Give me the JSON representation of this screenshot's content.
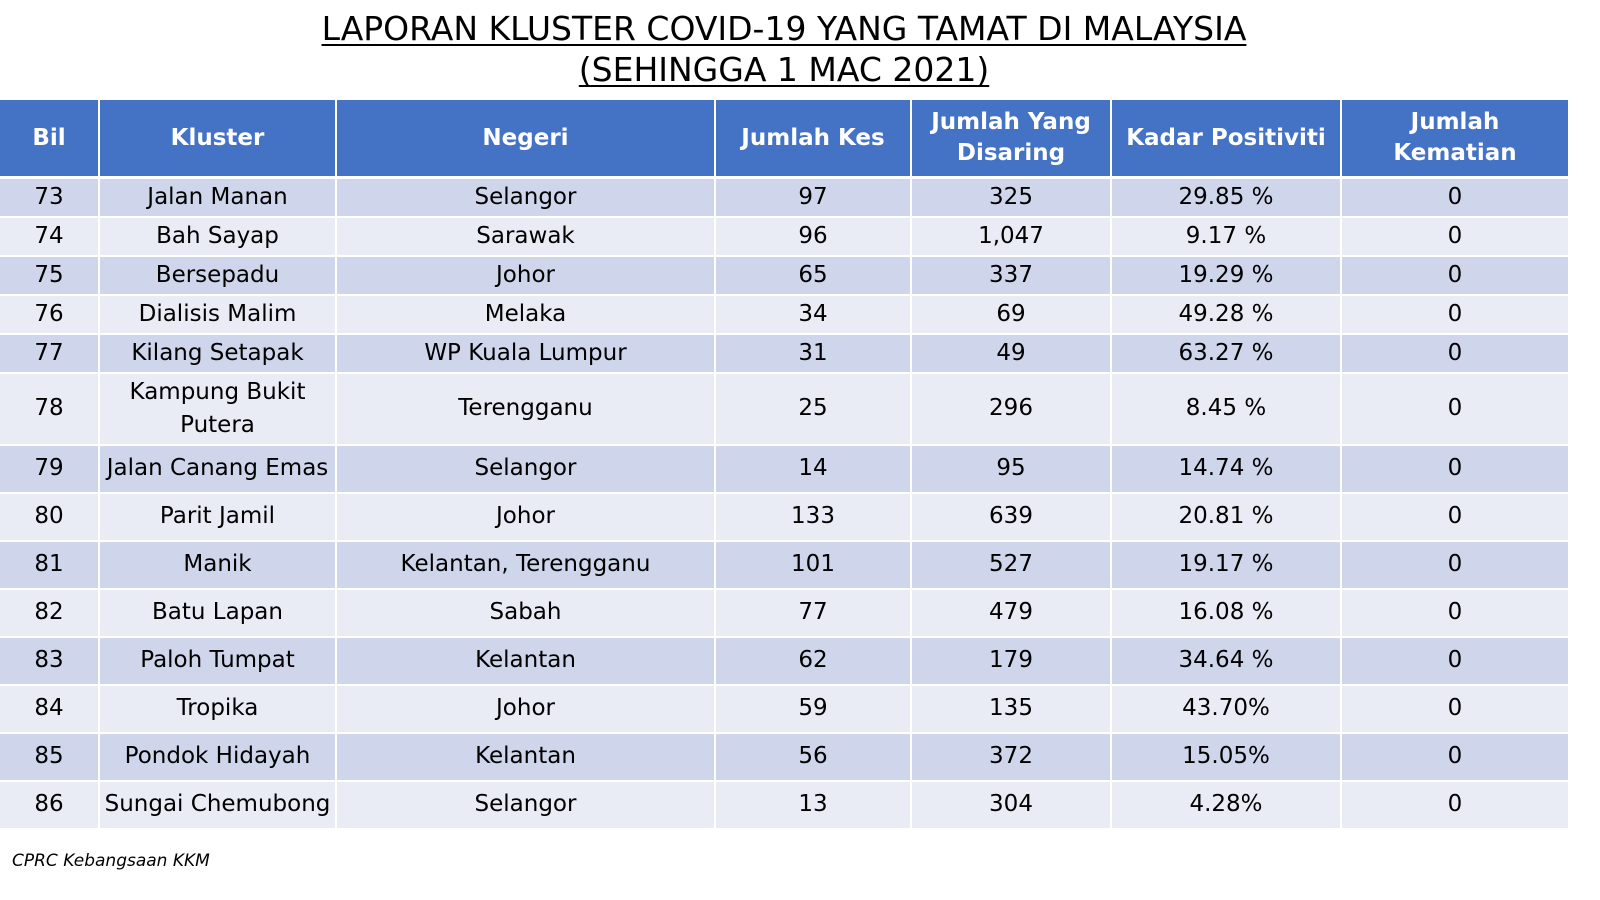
{
  "title": {
    "line1": "LAPORAN KLUSTER COVID-19 YANG TAMAT DI MALAYSIA",
    "line2": "(SEHINGGA  1 MAC 2021)"
  },
  "colors": {
    "header_bg": "#4472c4",
    "row_odd": "#cfd5ea",
    "row_even": "#e9ebf5"
  },
  "table": {
    "headers": [
      "Bil",
      "Kluster",
      "Negeri",
      "Jumlah Kes",
      "Jumlah Yang Disaring",
      "Kadar Positiviti",
      "Jumlah Kematian"
    ],
    "rows": [
      [
        "73",
        "Jalan Manan",
        "Selangor",
        "97",
        "325",
        "29.85 %",
        "0"
      ],
      [
        "74",
        "Bah Sayap",
        "Sarawak",
        "96",
        "1,047",
        "9.17 %",
        "0"
      ],
      [
        "75",
        "Bersepadu",
        "Johor",
        "65",
        "337",
        "19.29 %",
        "0"
      ],
      [
        "76",
        "Dialisis Malim",
        "Melaka",
        "34",
        "69",
        "49.28 %",
        "0"
      ],
      [
        "77",
        "Kilang Setapak",
        "WP Kuala Lumpur",
        "31",
        "49",
        "63.27 %",
        "0"
      ],
      [
        "78",
        "Kampung Bukit Putera",
        "Terengganu",
        "25",
        "296",
        "8.45 %",
        "0"
      ],
      [
        "79",
        "Jalan Canang Emas",
        "Selangor",
        "14",
        "95",
        "14.74 %",
        "0"
      ],
      [
        "80",
        "Parit Jamil",
        "Johor",
        "133",
        "639",
        "20.81 %",
        "0"
      ],
      [
        "81",
        "Manik",
        "Kelantan, Terengganu",
        "101",
        "527",
        "19.17 %",
        "0"
      ],
      [
        "82",
        "Batu Lapan",
        "Sabah",
        "77",
        "479",
        "16.08 %",
        "0"
      ],
      [
        "83",
        "Paloh Tumpat",
        "Kelantan",
        "62",
        "179",
        "34.64 %",
        "0"
      ],
      [
        "84",
        "Tropika",
        "Johor",
        "59",
        "135",
        "43.70%",
        "0"
      ],
      [
        "85",
        "Pondok Hidayah",
        "Kelantan",
        "56",
        "372",
        "15.05%",
        "0"
      ],
      [
        "86",
        "Sungai Chemubong",
        "Selangor",
        "13",
        "304",
        "4.28%",
        "0"
      ]
    ]
  },
  "footer": {
    "source": "CPRC Kebangsaan KKM"
  }
}
